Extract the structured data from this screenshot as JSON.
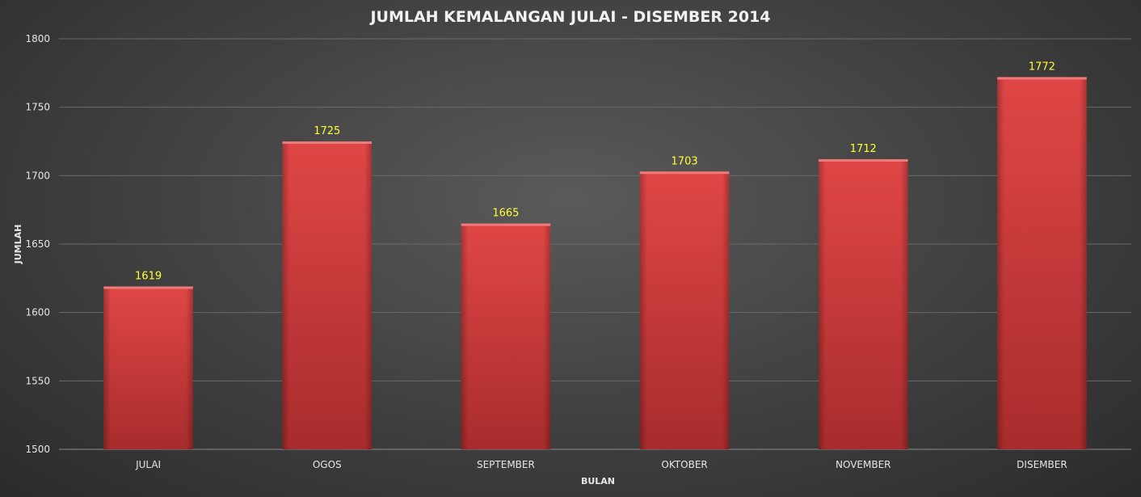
{
  "chart_data": {
    "type": "bar",
    "title": "JUMLAH KEMALANGAN JULAI - DISEMBER 2014",
    "xlabel": "BULAN",
    "ylabel": "JUMLAH",
    "categories": [
      "JULAI",
      "OGOS",
      "SEPTEMBER",
      "OKTOBER",
      "NOVEMBER",
      "DISEMBER"
    ],
    "values": [
      1619,
      1725,
      1665,
      1703,
      1712,
      1772
    ],
    "ylim": [
      1500,
      1800
    ],
    "yticks": [
      1500,
      1550,
      1600,
      1650,
      1700,
      1750,
      1800
    ],
    "grid": true,
    "legend": "none",
    "data_labels": true
  },
  "colors": {
    "bar": "#d94040",
    "bar_dark": "#a52a2a",
    "data_label": "#ffff33",
    "grid": "#6a6a6a",
    "text": "#e6e6e6"
  }
}
